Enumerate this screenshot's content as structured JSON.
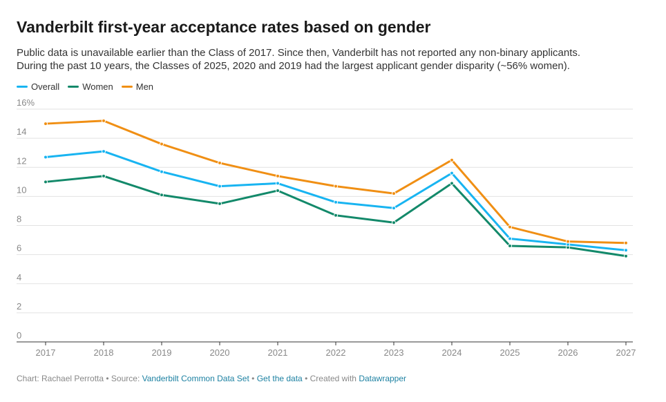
{
  "header": {
    "title": "Vanderbilt first-year acceptance rates based on gender",
    "subtitle_line1": "Public data is unavailable earlier than the Class of 2017. Since then, Vanderbilt has not reported any non-binary applicants.",
    "subtitle_line2": "During the past 10 years, the Classes of 2025, 2020 and 2019 had the largest applicant gender disparity (~56% women)."
  },
  "chart_data": {
    "type": "line",
    "title": "Vanderbilt first-year acceptance rates based on gender",
    "xlabel": "",
    "ylabel": "",
    "x": [
      "2017",
      "2018",
      "2019",
      "2020",
      "2021",
      "2022",
      "2023",
      "2024",
      "2025",
      "2026",
      "2027"
    ],
    "yticks": [
      "0",
      "2",
      "4",
      "6",
      "8",
      "10",
      "12",
      "14",
      "16%"
    ],
    "ylim": [
      0,
      16
    ],
    "grid": true,
    "legend_position": "top-left",
    "series": [
      {
        "name": "Overall",
        "color": "#18b4f1",
        "values": [
          12.7,
          13.1,
          11.7,
          10.7,
          10.9,
          9.6,
          9.2,
          11.6,
          7.1,
          6.7,
          6.3
        ]
      },
      {
        "name": "Women",
        "color": "#13896a",
        "values": [
          11.0,
          11.4,
          10.1,
          9.5,
          10.4,
          8.7,
          8.2,
          10.9,
          6.6,
          6.5,
          5.9
        ]
      },
      {
        "name": "Men",
        "color": "#f08f14",
        "values": [
          15.0,
          15.2,
          13.6,
          12.3,
          11.4,
          10.7,
          10.2,
          12.5,
          7.9,
          6.9,
          6.8
        ]
      }
    ]
  },
  "footer": {
    "chart_by": "Chart: Rachael Perrotta • Source: ",
    "source_link": "Vanderbilt Common Data Set",
    "sep1": " • ",
    "get_data": "Get the data",
    "sep2": " • Created with ",
    "tool": "Datawrapper"
  }
}
